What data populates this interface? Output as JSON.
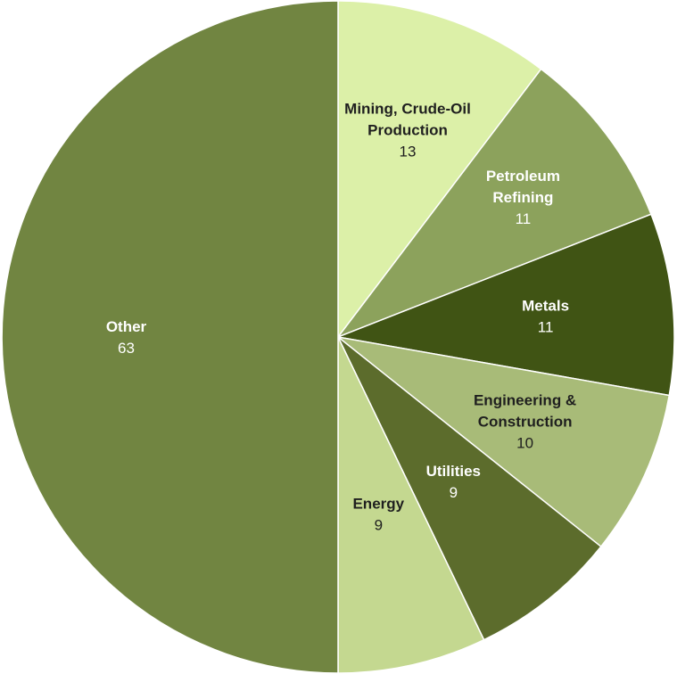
{
  "chart_data": {
    "type": "pie",
    "title": "",
    "start": "12 o'clock",
    "direction": "clockwise",
    "slices": [
      {
        "label": "Mining, Crude-Oil Production",
        "lines": [
          "Mining, Crude-Oil",
          "Production"
        ],
        "value": 13,
        "color": "#dcf0a8",
        "text_color": "#1f1f1f"
      },
      {
        "label": "Petroleum Refining",
        "lines": [
          "Petroleum",
          "Refining"
        ],
        "value": 11,
        "color": "#8ca25c",
        "text_color": "#ffffff"
      },
      {
        "label": "Metals",
        "lines": [
          "Metals"
        ],
        "value": 11,
        "color": "#405414",
        "text_color": "#ffffff"
      },
      {
        "label": "Engineering & Construction",
        "lines": [
          "Engineering &",
          "Construction"
        ],
        "value": 10,
        "color": "#a8bb78",
        "text_color": "#1f1f1f"
      },
      {
        "label": "Utilities",
        "lines": [
          "Utilities"
        ],
        "value": 9,
        "color": "#5c6c2c",
        "text_color": "#ffffff"
      },
      {
        "label": "Energy",
        "lines": [
          "Energy"
        ],
        "value": 9,
        "color": "#c4d890",
        "text_color": "#1f1f1f"
      },
      {
        "label": "Other",
        "lines": [
          "Other"
        ],
        "value": 63,
        "color": "#718541",
        "text_color": "#ffffff"
      }
    ]
  }
}
